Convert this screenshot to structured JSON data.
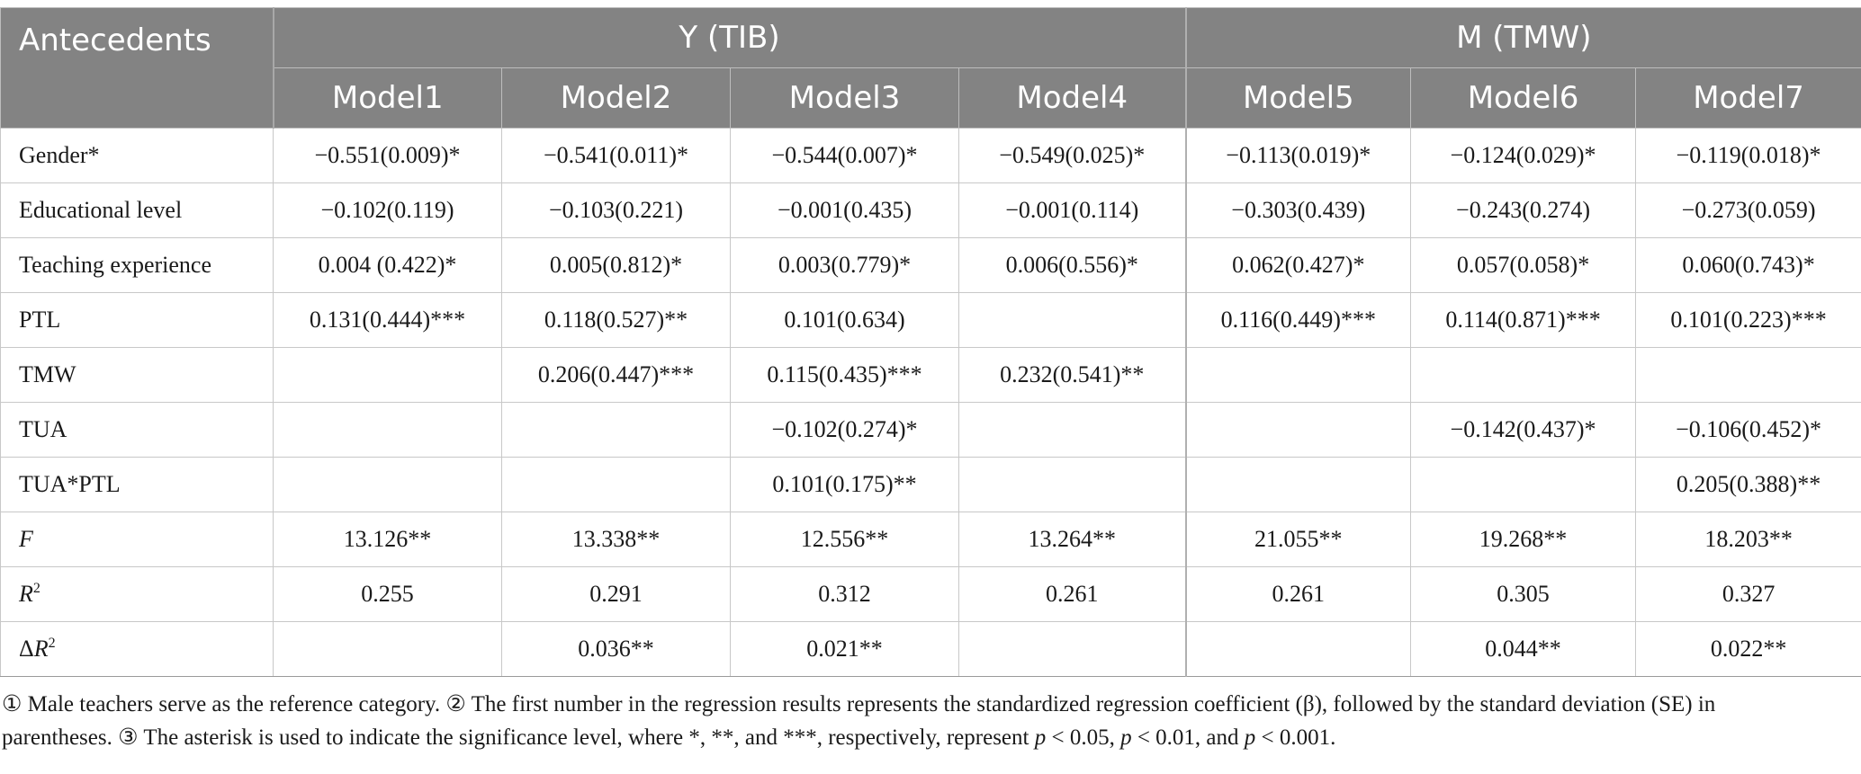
{
  "table": {
    "corner": "Antecedents",
    "groups": [
      {
        "label": "Y (TIB)",
        "span": 4
      },
      {
        "label": "M (TMW)",
        "span": 3
      }
    ],
    "models": [
      "Model1",
      "Model2",
      "Model3",
      "Model4",
      "Model5",
      "Model6",
      "Model7"
    ],
    "rows": [
      {
        "label": "Gender*",
        "cells": [
          "−0.551(0.009)*",
          "−0.541(0.011)*",
          "−0.544(0.007)*",
          "−0.549(0.025)*",
          "−0.113(0.019)*",
          "−0.124(0.029)*",
          "−0.119(0.018)*"
        ]
      },
      {
        "label": "Educational level",
        "cells": [
          "−0.102(0.119)",
          "−0.103(0.221)",
          "−0.001(0.435)",
          "−0.001(0.114)",
          "−0.303(0.439)",
          "−0.243(0.274)",
          "−0.273(0.059)"
        ]
      },
      {
        "label": "Teaching experience",
        "cells": [
          "0.004 (0.422)*",
          "0.005(0.812)*",
          "0.003(0.779)*",
          "0.006(0.556)*",
          "0.062(0.427)*",
          "0.057(0.058)*",
          "0.060(0.743)*"
        ]
      },
      {
        "label": "PTL",
        "cells": [
          "0.131(0.444)***",
          "0.118(0.527)**",
          "0.101(0.634)",
          "",
          "0.116(0.449)***",
          "0.114(0.871)***",
          "0.101(0.223)***"
        ]
      },
      {
        "label": "TMW",
        "cells": [
          "",
          "0.206(0.447)***",
          "0.115(0.435)***",
          "0.232(0.541)**",
          "",
          "",
          ""
        ]
      },
      {
        "label": "TUA",
        "cells": [
          "",
          "",
          "−0.102(0.274)*",
          "",
          "",
          "−0.142(0.437)*",
          "−0.106(0.452)*"
        ]
      },
      {
        "label": "TUA*PTL",
        "cells": [
          "",
          "",
          "0.101(0.175)**",
          "",
          "",
          "",
          "0.205(0.388)**"
        ]
      },
      {
        "label": "F",
        "cells": [
          "13.126**",
          "13.338**",
          "12.556**",
          "13.264**",
          "21.055**",
          "19.268**",
          "18.203**"
        ]
      },
      {
        "label": "R",
        "label_sup": "2",
        "cells": [
          "0.255",
          "0.291",
          "0.312",
          "0.261",
          "0.261",
          "0.305",
          "0.327"
        ]
      },
      {
        "label": "ΔR",
        "label_sup": "2",
        "cells": [
          "",
          "0.036**",
          "0.021**",
          "",
          "",
          "0.044**",
          "0.022**"
        ]
      }
    ]
  },
  "notes": {
    "line1": "① Male teachers serve as the reference category. ② The first number in the regression results represents the standardized regression coefficient (β), followed by the standard deviation (SE) in",
    "line2_a": "parentheses. ③ The asterisk is used to indicate the significance level, where *, **, and ***, respectively, represent ",
    "p": "p",
    "t1": " < 0.05, ",
    "t2": " < 0.01, and ",
    "t3": " < 0.001."
  }
}
